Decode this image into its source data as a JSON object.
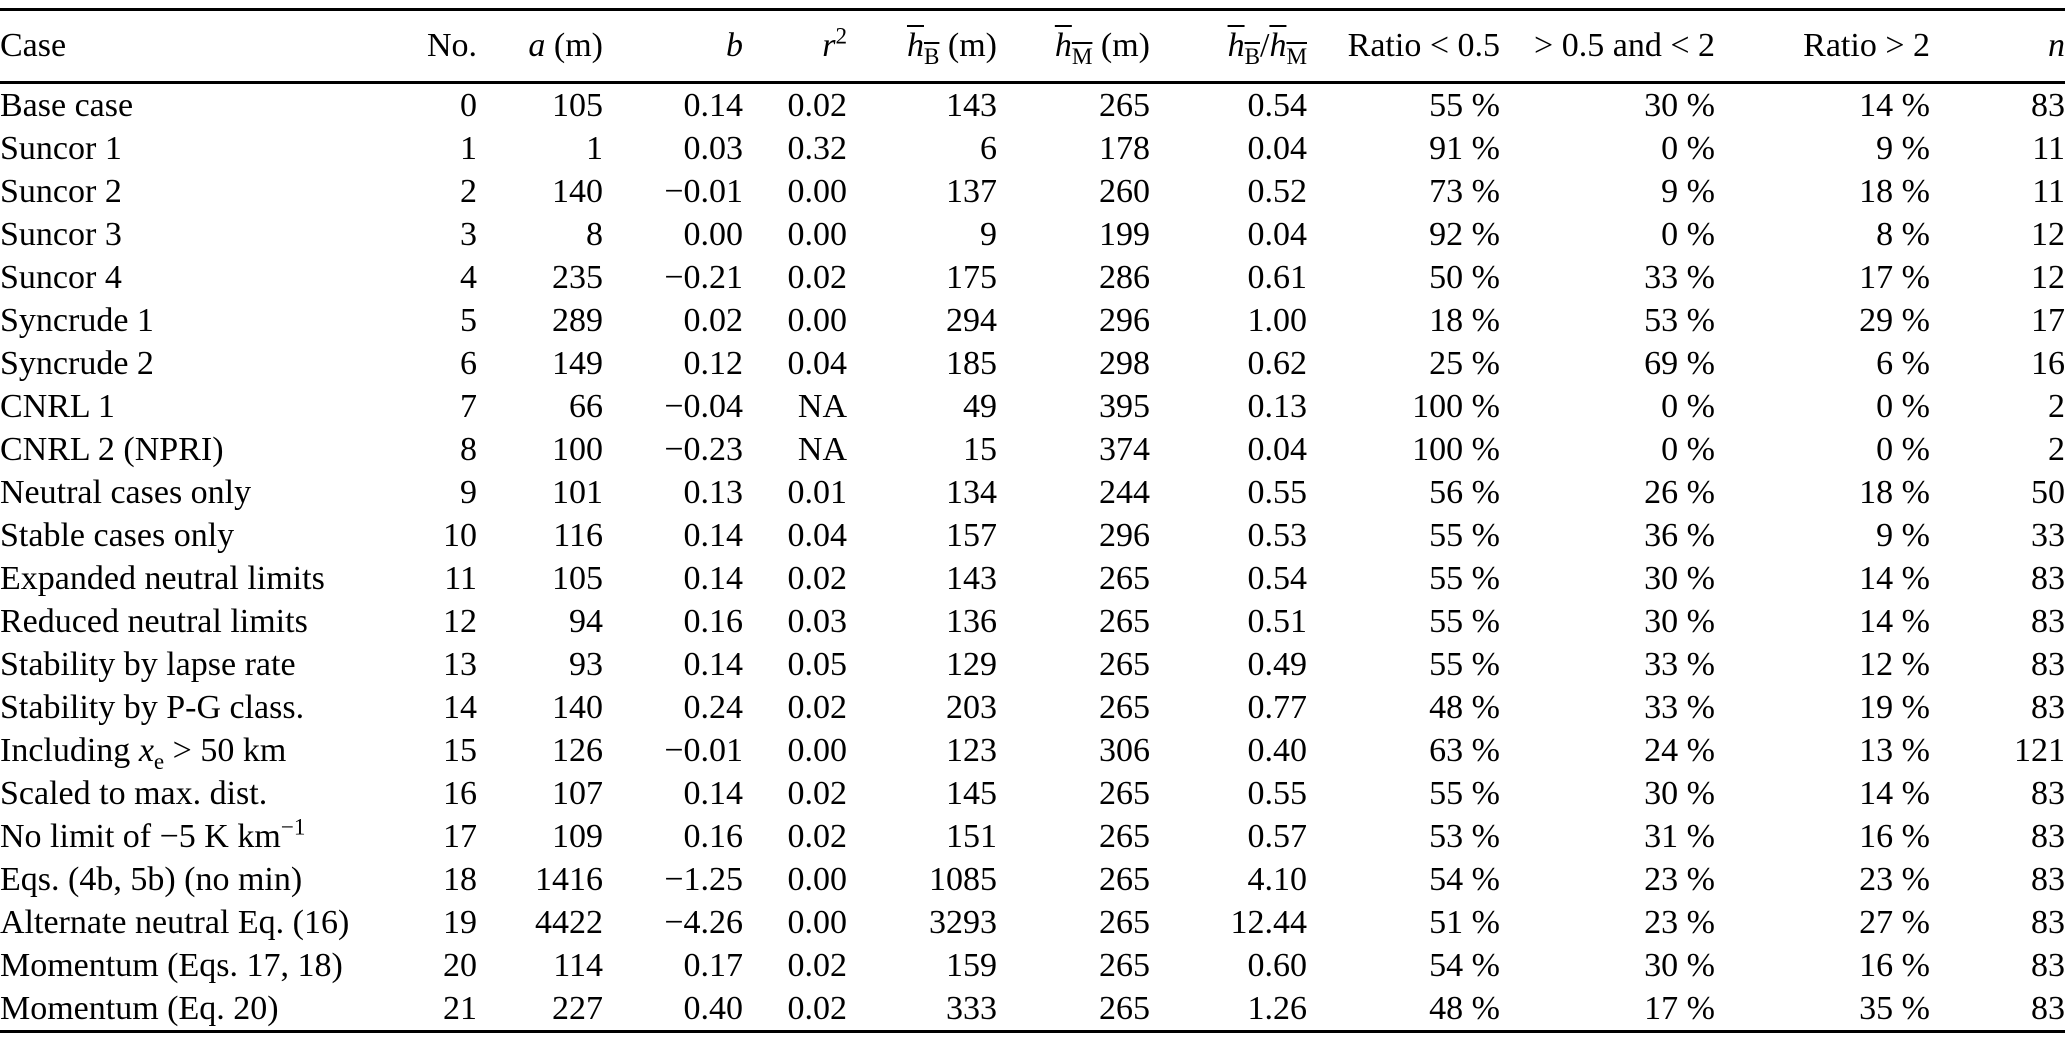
{
  "page": {
    "background_color": "#ffffff",
    "text_color": "#000000",
    "rule_color": "#000000"
  },
  "table": {
    "columns": [
      {
        "id": "case",
        "label_html": "Case",
        "align": "left"
      },
      {
        "id": "no",
        "label_html": "No.",
        "align": "right"
      },
      {
        "id": "a",
        "label_html": "<i>a</i> (m)",
        "align": "right"
      },
      {
        "id": "b",
        "label_html": "<i>b</i>",
        "align": "right"
      },
      {
        "id": "r2",
        "label_html": "<i>r</i><sup>2</sup>",
        "align": "right"
      },
      {
        "id": "hb",
        "label_html": "<span class='ov'><i>h</i><sub>B</sub></span> (m)",
        "align": "right"
      },
      {
        "id": "hm",
        "label_html": "<span class='ov'><i>h</i><sub>M</sub></span> (m)",
        "align": "right"
      },
      {
        "id": "hbhm",
        "label_html": "<span class='ov'><i>h</i><sub>B</sub></span>/<span class='ov'><i>h</i><sub>M</sub></span>",
        "align": "right"
      },
      {
        "id": "lt05",
        "label_html": "Ratio &lt; 0.5",
        "align": "right"
      },
      {
        "id": "mid",
        "label_html": "&gt; 0.5 and &lt; 2",
        "align": "right"
      },
      {
        "id": "gt2",
        "label_html": "Ratio &gt; 2",
        "align": "right"
      },
      {
        "id": "n",
        "label_html": "<i>n</i>",
        "align": "right"
      }
    ],
    "rows": [
      {
        "cells": [
          "Base case",
          "0",
          "105",
          "0.14",
          "0.02",
          "143",
          "265",
          "0.54",
          "55 %",
          "30 %",
          "14 %",
          "83"
        ]
      },
      {
        "cells": [
          "Suncor 1",
          "1",
          "1",
          "0.03",
          "0.32",
          "6",
          "178",
          "0.04",
          "91 %",
          "0 %",
          "9 %",
          "11"
        ]
      },
      {
        "cells": [
          "Suncor 2",
          "2",
          "140",
          "−0.01",
          "0.00",
          "137",
          "260",
          "0.52",
          "73 %",
          "9 %",
          "18 %",
          "11"
        ]
      },
      {
        "cells": [
          "Suncor 3",
          "3",
          "8",
          "0.00",
          "0.00",
          "9",
          "199",
          "0.04",
          "92 %",
          "0 %",
          "8 %",
          "12"
        ]
      },
      {
        "cells": [
          "Suncor 4",
          "4",
          "235",
          "−0.21",
          "0.02",
          "175",
          "286",
          "0.61",
          "50 %",
          "33 %",
          "17 %",
          "12"
        ]
      },
      {
        "cells": [
          "Syncrude 1",
          "5",
          "289",
          "0.02",
          "0.00",
          "294",
          "296",
          "1.00",
          "18 %",
          "53 %",
          "29 %",
          "17"
        ]
      },
      {
        "cells": [
          "Syncrude 2",
          "6",
          "149",
          "0.12",
          "0.04",
          "185",
          "298",
          "0.62",
          "25 %",
          "69 %",
          "6 %",
          "16"
        ]
      },
      {
        "cells": [
          "CNRL 1",
          "7",
          "66",
          "−0.04",
          "NA",
          "49",
          "395",
          "0.13",
          "100 %",
          "0 %",
          "0 %",
          "2"
        ]
      },
      {
        "cells": [
          "CNRL 2 (NPRI)",
          "8",
          "100",
          "−0.23",
          "NA",
          "15",
          "374",
          "0.04",
          "100 %",
          "0 %",
          "0 %",
          "2"
        ]
      },
      {
        "cells": [
          "Neutral cases only",
          "9",
          "101",
          "0.13",
          "0.01",
          "134",
          "244",
          "0.55",
          "56 %",
          "26 %",
          "18 %",
          "50"
        ]
      },
      {
        "cells": [
          "Stable cases only",
          "10",
          "116",
          "0.14",
          "0.04",
          "157",
          "296",
          "0.53",
          "55 %",
          "36 %",
          "9 %",
          "33"
        ]
      },
      {
        "cells": [
          "Expanded neutral limits",
          "11",
          "105",
          "0.14",
          "0.02",
          "143",
          "265",
          "0.54",
          "55 %",
          "30 %",
          "14 %",
          "83"
        ]
      },
      {
        "cells": [
          "Reduced neutral limits",
          "12",
          "94",
          "0.16",
          "0.03",
          "136",
          "265",
          "0.51",
          "55 %",
          "30 %",
          "14 %",
          "83"
        ]
      },
      {
        "cells": [
          "Stability by lapse rate",
          "13",
          "93",
          "0.14",
          "0.05",
          "129",
          "265",
          "0.49",
          "55 %",
          "33 %",
          "12 %",
          "83"
        ]
      },
      {
        "cells": [
          "Stability by P-G class.",
          "14",
          "140",
          "0.24",
          "0.02",
          "203",
          "265",
          "0.77",
          "48 %",
          "33 %",
          "19 %",
          "83"
        ]
      },
      {
        "cells": [
          "Including <i>x</i><sub>e</sub> &gt; 50 km",
          "15",
          "126",
          "−0.01",
          "0.00",
          "123",
          "306",
          "0.40",
          "63 %",
          "24 %",
          "13 %",
          "121"
        ]
      },
      {
        "cells": [
          "Scaled to max. dist.",
          "16",
          "107",
          "0.14",
          "0.02",
          "145",
          "265",
          "0.55",
          "55 %",
          "30 %",
          "14 %",
          "83"
        ]
      },
      {
        "cells": [
          "No limit of −5 K km<sup>−1</sup>",
          "17",
          "109",
          "0.16",
          "0.02",
          "151",
          "265",
          "0.57",
          "53 %",
          "31 %",
          "16 %",
          "83"
        ]
      },
      {
        "cells": [
          "Eqs. (4b, 5b) (no min)",
          "18",
          "1416",
          "−1.25",
          "0.00",
          "1085",
          "265",
          "4.10",
          "54 %",
          "23 %",
          "23 %",
          "83"
        ]
      },
      {
        "cells": [
          "Alternate neutral Eq. (16)",
          "19",
          "4422",
          "−4.26",
          "0.00",
          "3293",
          "265",
          "12.44",
          "51 %",
          "23 %",
          "27 %",
          "83"
        ]
      },
      {
        "cells": [
          "Momentum (Eqs. 17, 18)",
          "20",
          "114",
          "0.17",
          "0.02",
          "159",
          "265",
          "0.60",
          "54 %",
          "30 %",
          "16 %",
          "83"
        ]
      },
      {
        "cells": [
          "Momentum (Eq. 20)",
          "21",
          "227",
          "0.40",
          "0.02",
          "333",
          "265",
          "1.26",
          "48 %",
          "17 %",
          "35 %",
          "83"
        ]
      }
    ]
  }
}
